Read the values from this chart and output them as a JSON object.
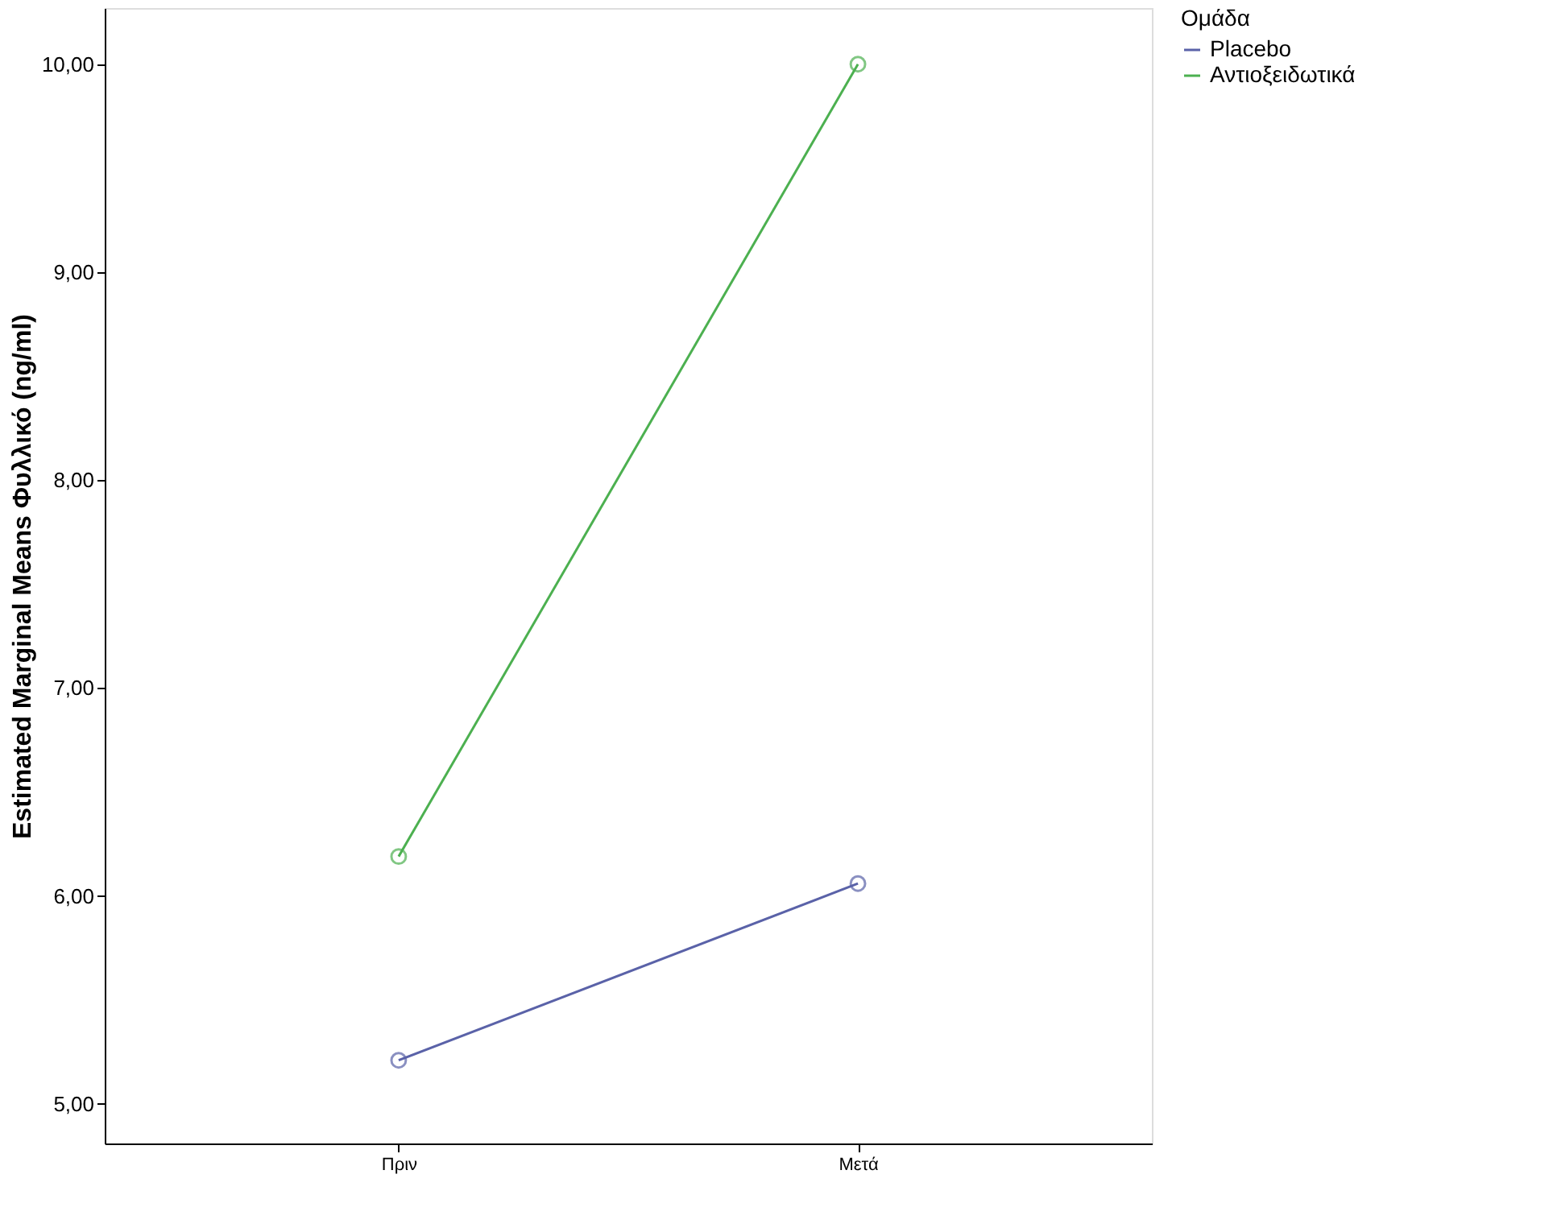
{
  "chart_data": {
    "type": "line",
    "categories": [
      "Πριν",
      "Μετά"
    ],
    "ylabel": "Estimated Marginal Means Φυλλικό (ng/ml)",
    "legend_title": "Ομάδα",
    "ylim": [
      4.81,
      10.27
    ],
    "yticks": [
      {
        "value": 5,
        "label": "5,00"
      },
      {
        "value": 6,
        "label": "6,00"
      },
      {
        "value": 7,
        "label": "7,00"
      },
      {
        "value": 8,
        "label": "8,00"
      },
      {
        "value": 9,
        "label": "9,00"
      },
      {
        "value": 10,
        "label": "10,00"
      }
    ],
    "grid": false,
    "legend": "top right",
    "marker": "circle",
    "line_style": "solid",
    "series": [
      {
        "name": "Placebo",
        "color": "#5a62a8",
        "values": [
          5.21,
          6.06
        ]
      },
      {
        "name": "Αντιοξειδωτικά",
        "color": "#4cb050",
        "values": [
          6.19,
          10.0
        ]
      }
    ]
  }
}
